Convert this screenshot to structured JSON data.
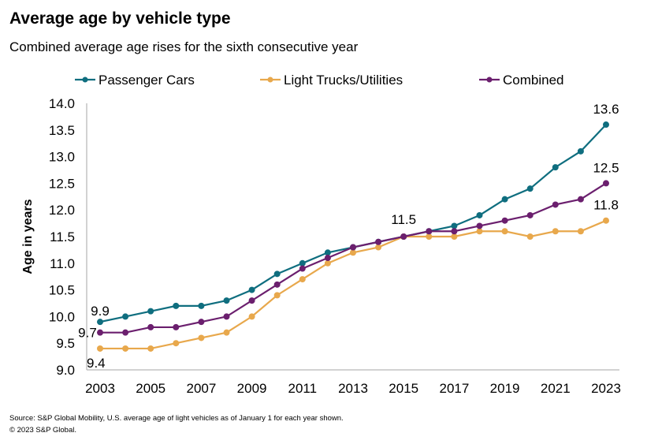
{
  "chart_data": {
    "type": "line",
    "title": "Average age by vehicle type",
    "subtitle": "Combined average age rises for the sixth consecutive year",
    "xlabel": "",
    "ylabel": "Age in years",
    "ylim": [
      9.0,
      14.0
    ],
    "yticks": [
      "9.0",
      "9.5",
      "10.0",
      "10.5",
      "11.0",
      "11.5",
      "12.0",
      "12.5",
      "13.0",
      "13.5",
      "14.0"
    ],
    "xticks": [
      "2003",
      "2005",
      "2007",
      "2009",
      "2011",
      "2013",
      "2015",
      "2017",
      "2019",
      "2021",
      "2023"
    ],
    "x": [
      2003,
      2004,
      2005,
      2006,
      2007,
      2008,
      2009,
      2010,
      2011,
      2012,
      2013,
      2014,
      2015,
      2016,
      2017,
      2018,
      2019,
      2020,
      2021,
      2022,
      2023
    ],
    "grid": false,
    "legend_position": "top",
    "series": [
      {
        "name": "Passenger Cars",
        "color": "#0f6e7f",
        "values": [
          9.9,
          10.0,
          10.1,
          10.2,
          10.2,
          10.3,
          10.5,
          10.8,
          11.0,
          11.2,
          11.3,
          11.4,
          11.5,
          11.6,
          11.7,
          11.9,
          12.2,
          12.4,
          12.8,
          13.1,
          13.6
        ]
      },
      {
        "name": "Light Trucks/Utilities",
        "color": "#e8a84c",
        "values": [
          9.4,
          9.4,
          9.4,
          9.5,
          9.6,
          9.7,
          10.0,
          10.4,
          10.7,
          11.0,
          11.2,
          11.3,
          11.5,
          11.5,
          11.5,
          11.6,
          11.6,
          11.5,
          11.6,
          11.6,
          11.8
        ]
      },
      {
        "name": "Combined",
        "color": "#6b1f6e",
        "values": [
          9.7,
          9.7,
          9.8,
          9.8,
          9.9,
          10.0,
          10.3,
          10.6,
          10.9,
          11.1,
          11.3,
          11.4,
          11.5,
          11.6,
          11.6,
          11.7,
          11.8,
          11.9,
          12.1,
          12.2,
          12.5
        ]
      }
    ],
    "annotations": [
      {
        "text": "9.9",
        "x": 2003,
        "series": "Passenger Cars"
      },
      {
        "text": "9.7",
        "x": 2003,
        "series": "Combined"
      },
      {
        "text": "9.4",
        "x": 2003,
        "series": "Light Trucks/Utilities"
      },
      {
        "text": "11.5",
        "x": 2015,
        "series": "Combined"
      },
      {
        "text": "13.6",
        "x": 2023,
        "series": "Passenger Cars"
      },
      {
        "text": "12.5",
        "x": 2023,
        "series": "Combined"
      },
      {
        "text": "11.8",
        "x": 2023,
        "series": "Light Trucks/Utilities"
      }
    ]
  },
  "footer": {
    "source": "Source: S&P Global Mobility, U.S. average age of light vehicles as of January 1 for each year shown.",
    "copyright": "© 2023 S&P Global."
  }
}
